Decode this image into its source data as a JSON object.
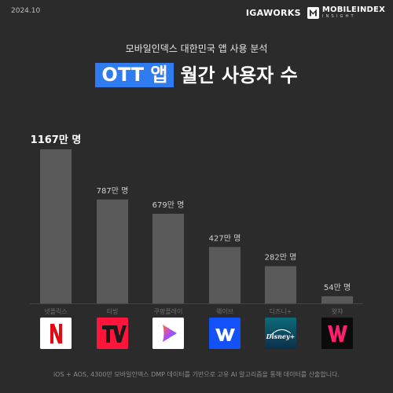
{
  "header": {
    "date": "2024.10",
    "brand_left": "IGAWORKS",
    "brand_right_top": "MOBILEINDEX",
    "brand_right_bottom": "INSIGHT"
  },
  "subtitle": "모바일인덱스 대한민국 앱 사용 분석",
  "title": {
    "highlight": "OTT 앱",
    "rest": "월간 사용자 수"
  },
  "footnote": "iOS + AOS, 4300만 모바일인덱스 DMP 데이터를 기반으로 고유 AI 알고리즘을 통해 데이터를 산출합니다.",
  "colors": {
    "background": "#2b2b2b",
    "bar": "#5a5a5a",
    "accent": "#2f7bf0"
  },
  "chart_data": {
    "type": "bar",
    "title": "OTT 앱 월간 사용자 수",
    "categories": [
      "넷플릭스",
      "티빙",
      "쿠팡플레이",
      "웨이브",
      "디즈니+",
      "왓챠"
    ],
    "values": [
      1167,
      787,
      679,
      427,
      282,
      54
    ],
    "value_labels": [
      "1167만 명",
      "787만 명",
      "679만 명",
      "427만 명",
      "282만 명",
      "54만 명"
    ],
    "unit": "만 명",
    "ylim": [
      0,
      1167
    ],
    "grid": false,
    "legend": "none"
  },
  "apps": [
    {
      "name": "netflix",
      "icon": "netflix-logo-icon",
      "letter": "N",
      "bg": "#ffffff",
      "fg": "#e50914"
    },
    {
      "name": "tving",
      "icon": "tving-logo-icon",
      "letter": "V",
      "bg": "#ff153c",
      "fg": "#1a1a1a"
    },
    {
      "name": "coupangplay",
      "icon": "coupangplay-logo-icon",
      "letter": "",
      "bg": "#ffffff",
      "fg": "#4a6cf7"
    },
    {
      "name": "wavve",
      "icon": "wavve-logo-icon",
      "letter": "w",
      "bg": "#1351f9",
      "fg": "#ffffff"
    },
    {
      "name": "disneyplus",
      "icon": "disneyplus-logo-icon",
      "letter": "Disney+",
      "bg": "#0e4c5f",
      "fg": "#ffffff"
    },
    {
      "name": "watcha",
      "icon": "watcha-logo-icon",
      "letter": "W",
      "bg": "#0b0b0b",
      "fg": "#ff1f6e"
    }
  ]
}
